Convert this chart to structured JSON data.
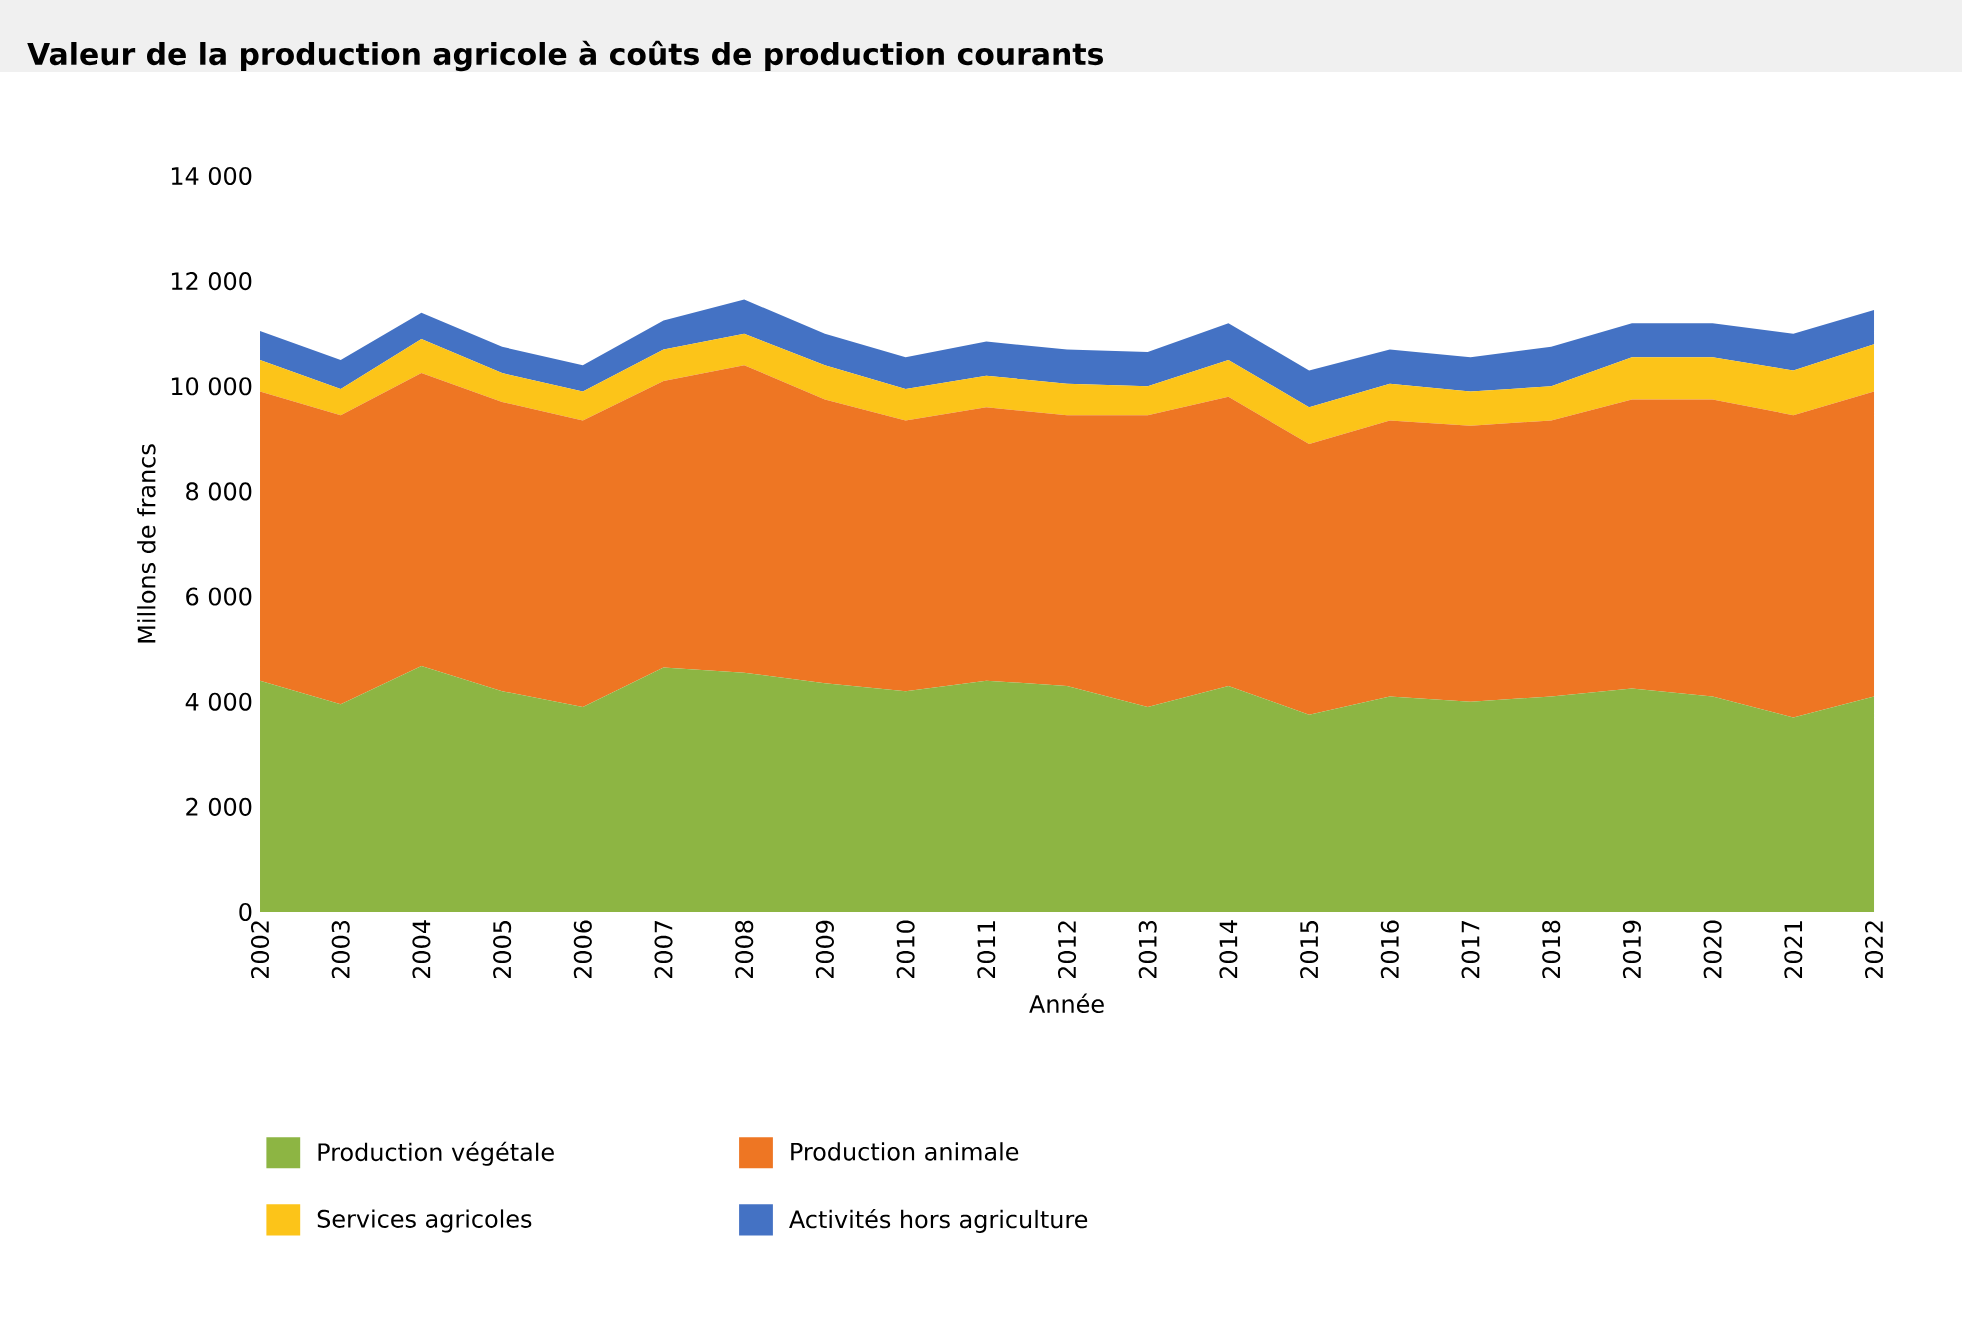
{
  "chart_data": {
    "type": "area",
    "stacked": true,
    "title": "Valeur de la production agricole à coûts de production courants",
    "xlabel": "Année",
    "ylabel": "Millons de francs",
    "x": [
      2002,
      2003,
      2004,
      2005,
      2006,
      2007,
      2008,
      2009,
      2010,
      2011,
      2012,
      2013,
      2014,
      2015,
      2016,
      2017,
      2018,
      2019,
      2020,
      2021,
      2022
    ],
    "xlim": [
      2002,
      2022
    ],
    "xticks": [
      2002,
      2003,
      2004,
      2005,
      2006,
      2007,
      2008,
      2009,
      2010,
      2011,
      2012,
      2013,
      2014,
      2015,
      2016,
      2017,
      2018,
      2019,
      2020,
      2021,
      2022
    ],
    "ylim": [
      0,
      14000
    ],
    "yticks": [
      {
        "value": 0,
        "label": "0"
      },
      {
        "value": 2000,
        "label": "2 000"
      },
      {
        "value": 4000,
        "label": "4 000"
      },
      {
        "value": 6000,
        "label": "6 000"
      },
      {
        "value": 8000,
        "label": "8 000"
      },
      {
        "value": 10000,
        "label": "10 000"
      },
      {
        "value": 12000,
        "label": "12 000"
      },
      {
        "value": 14000,
        "label": "14 000"
      }
    ],
    "legend": "bottom",
    "series": [
      {
        "name": "Production végétale",
        "color": "#8db543",
        "values": [
          4400,
          3950,
          4680,
          4200,
          3900,
          4650,
          4550,
          4350,
          4200,
          4400,
          4300,
          3900,
          4300,
          3750,
          4100,
          4000,
          4100,
          4250,
          4100,
          3700,
          4100
        ]
      },
      {
        "name": "Production animale",
        "color": "#ee7623",
        "values": [
          5500,
          5500,
          5570,
          5500,
          5450,
          5450,
          5850,
          5400,
          5150,
          5200,
          5150,
          5550,
          5500,
          5150,
          5250,
          5250,
          5250,
          5500,
          5650,
          5750,
          5800
        ]
      },
      {
        "name": "Services agricoles",
        "color": "#fcc419",
        "values": [
          600,
          500,
          650,
          550,
          550,
          600,
          600,
          650,
          600,
          600,
          600,
          550,
          700,
          700,
          700,
          650,
          650,
          800,
          800,
          850,
          900
        ]
      },
      {
        "name": "Activités hors agriculture",
        "color": "#4472c4",
        "values": [
          550,
          550,
          500,
          500,
          500,
          550,
          650,
          600,
          600,
          650,
          650,
          650,
          700,
          700,
          650,
          650,
          750,
          650,
          650,
          700,
          650
        ]
      }
    ]
  }
}
